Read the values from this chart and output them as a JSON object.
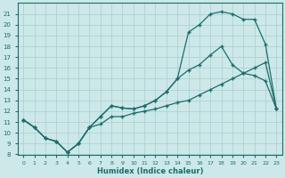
{
  "xlabel": "Humidex (Indice chaleur)",
  "xlim": [
    -0.5,
    23.5
  ],
  "ylim": [
    8,
    22
  ],
  "xticks": [
    0,
    1,
    2,
    3,
    4,
    5,
    6,
    7,
    8,
    9,
    10,
    11,
    12,
    13,
    14,
    15,
    16,
    17,
    18,
    19,
    20,
    21,
    22,
    23
  ],
  "yticks": [
    8,
    9,
    10,
    11,
    12,
    13,
    14,
    15,
    16,
    17,
    18,
    19,
    20,
    21
  ],
  "bg_color": "#cce8e8",
  "line_color": "#1a6e6e",
  "grid_color": "#aacece",
  "line1_x": [
    0,
    1,
    2,
    3,
    4,
    5,
    6,
    7,
    8,
    9,
    10,
    11,
    12,
    13,
    14,
    15,
    16,
    17,
    18,
    19,
    20,
    21,
    22,
    23
  ],
  "line1_y": [
    11.2,
    10.5,
    9.5,
    9.2,
    8.2,
    9.0,
    10.5,
    11.5,
    12.5,
    12.3,
    12.2,
    12.5,
    13.0,
    13.8,
    15.0,
    15.8,
    16.3,
    17.2,
    18.0,
    16.3,
    15.5,
    15.3,
    14.8,
    12.2
  ],
  "line2_x": [
    0,
    1,
    2,
    3,
    4,
    5,
    6,
    7,
    8,
    9,
    10,
    11,
    12,
    13,
    14,
    15,
    16,
    17,
    18,
    19,
    20,
    21,
    22,
    23
  ],
  "line2_y": [
    11.2,
    10.5,
    9.5,
    9.2,
    8.2,
    9.0,
    10.5,
    11.5,
    12.5,
    12.3,
    12.2,
    12.5,
    13.0,
    13.8,
    15.0,
    19.3,
    20.0,
    21.0,
    21.2,
    21.0,
    20.5,
    20.5,
    18.2,
    12.2
  ],
  "line3_x": [
    0,
    1,
    2,
    3,
    4,
    5,
    6,
    7,
    8,
    9,
    10,
    11,
    12,
    13,
    14,
    15,
    16,
    17,
    18,
    19,
    20,
    21,
    22,
    23
  ],
  "line3_y": [
    11.2,
    10.5,
    9.5,
    9.2,
    8.2,
    9.0,
    10.5,
    10.8,
    11.5,
    11.5,
    11.8,
    12.0,
    12.2,
    12.5,
    12.8,
    13.0,
    13.5,
    14.0,
    14.5,
    15.0,
    15.5,
    16.0,
    16.5,
    12.2
  ]
}
